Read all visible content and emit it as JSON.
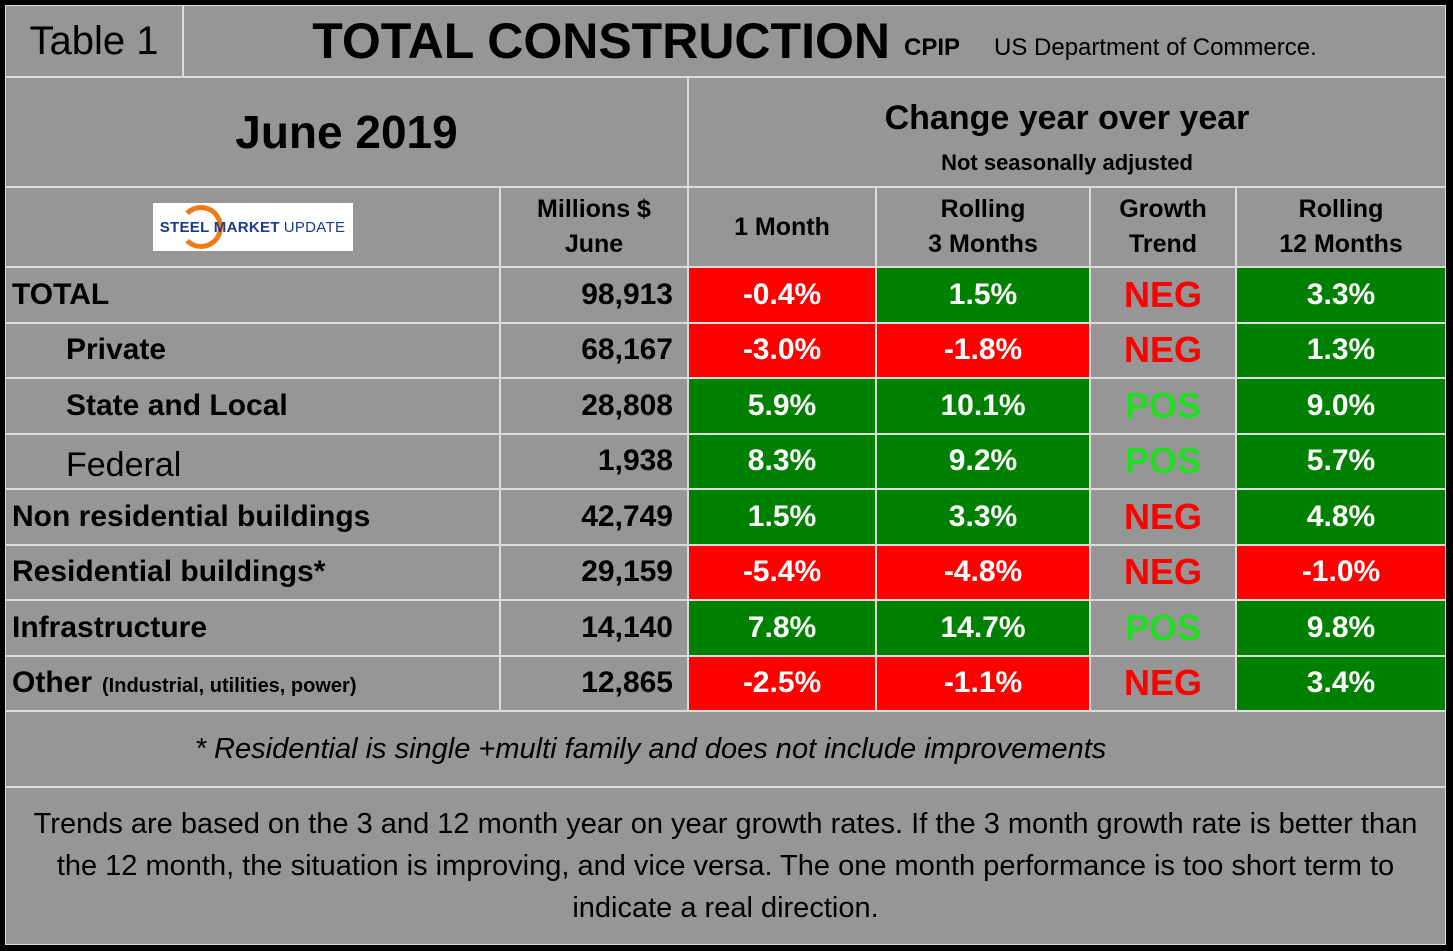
{
  "header": {
    "table_label": "Table 1",
    "title": "TOTAL CONSTRUCTION",
    "title_suffix": "CPIP",
    "source": "US Department of Commerce.",
    "period": "June 2019",
    "change_title": "Change year over year",
    "change_subtitle": "Not seasonally adjusted"
  },
  "logo": {
    "text_bold": "STEEL MARKET",
    "text_light": "UPDATE"
  },
  "colors": {
    "negative_bg": "#ff0000",
    "positive_bg": "#008000",
    "neg_text": "#ff0000",
    "pos_text": "#22dd22",
    "background": "#969696"
  },
  "chart_data": {
    "type": "table",
    "columns": [
      "Millions $ June",
      "1 Month",
      "Rolling 3 Months",
      "Growth Trend",
      "Rolling 12 Months"
    ],
    "column_lines": [
      [
        "Millions $",
        "June"
      ],
      [
        "1 Month"
      ],
      [
        "Rolling",
        "3 Months"
      ],
      [
        "Growth",
        "Trend"
      ],
      [
        "Rolling",
        "12 Months"
      ]
    ],
    "rows": [
      {
        "label": "TOTAL",
        "sub": "",
        "indent": false,
        "millions": "98,913",
        "m1": "-0.4%",
        "m3": "1.5%",
        "trend": "NEG",
        "m12": "3.3%"
      },
      {
        "label": "Private",
        "sub": "",
        "indent": true,
        "millions": "68,167",
        "m1": "-3.0%",
        "m3": "-1.8%",
        "trend": "NEG",
        "m12": "1.3%"
      },
      {
        "label": "State and Local",
        "sub": "",
        "indent": true,
        "millions": "28,808",
        "m1": "5.9%",
        "m3": "10.1%",
        "trend": "POS",
        "m12": "9.0%"
      },
      {
        "label": "Federal",
        "sub": "",
        "indent": true,
        "plain": true,
        "millions": "1,938",
        "m1": "8.3%",
        "m3": "9.2%",
        "trend": "POS",
        "m12": "5.7%"
      },
      {
        "label": "Non residential buildings",
        "sub": "",
        "indent": false,
        "millions": "42,749",
        "m1": "1.5%",
        "m3": "3.3%",
        "trend": "NEG",
        "m12": "4.8%"
      },
      {
        "label": "Residential buildings*",
        "sub": "",
        "indent": false,
        "millions": "29,159",
        "m1": "-5.4%",
        "m3": "-4.8%",
        "trend": "NEG",
        "m12": "-1.0%"
      },
      {
        "label": "Infrastructure",
        "sub": "",
        "indent": false,
        "millions": "14,140",
        "m1": "7.8%",
        "m3": "14.7%",
        "trend": "POS",
        "m12": "9.8%"
      },
      {
        "label": "Other",
        "sub": "(Industrial, utilities, power)",
        "indent": false,
        "millions": "12,865",
        "m1": "-2.5%",
        "m3": "-1.1%",
        "trend": "NEG",
        "m12": "3.4%"
      }
    ]
  },
  "footnote": "* Residential is single +multi family and does not include improvements",
  "explanation": "Trends are based on the 3 and 12 month year on year growth rates. If the 3 month growth rate is better than the 12 month, the situation is improving, and vice versa. The one month performance is too short term to indicate a real direction."
}
